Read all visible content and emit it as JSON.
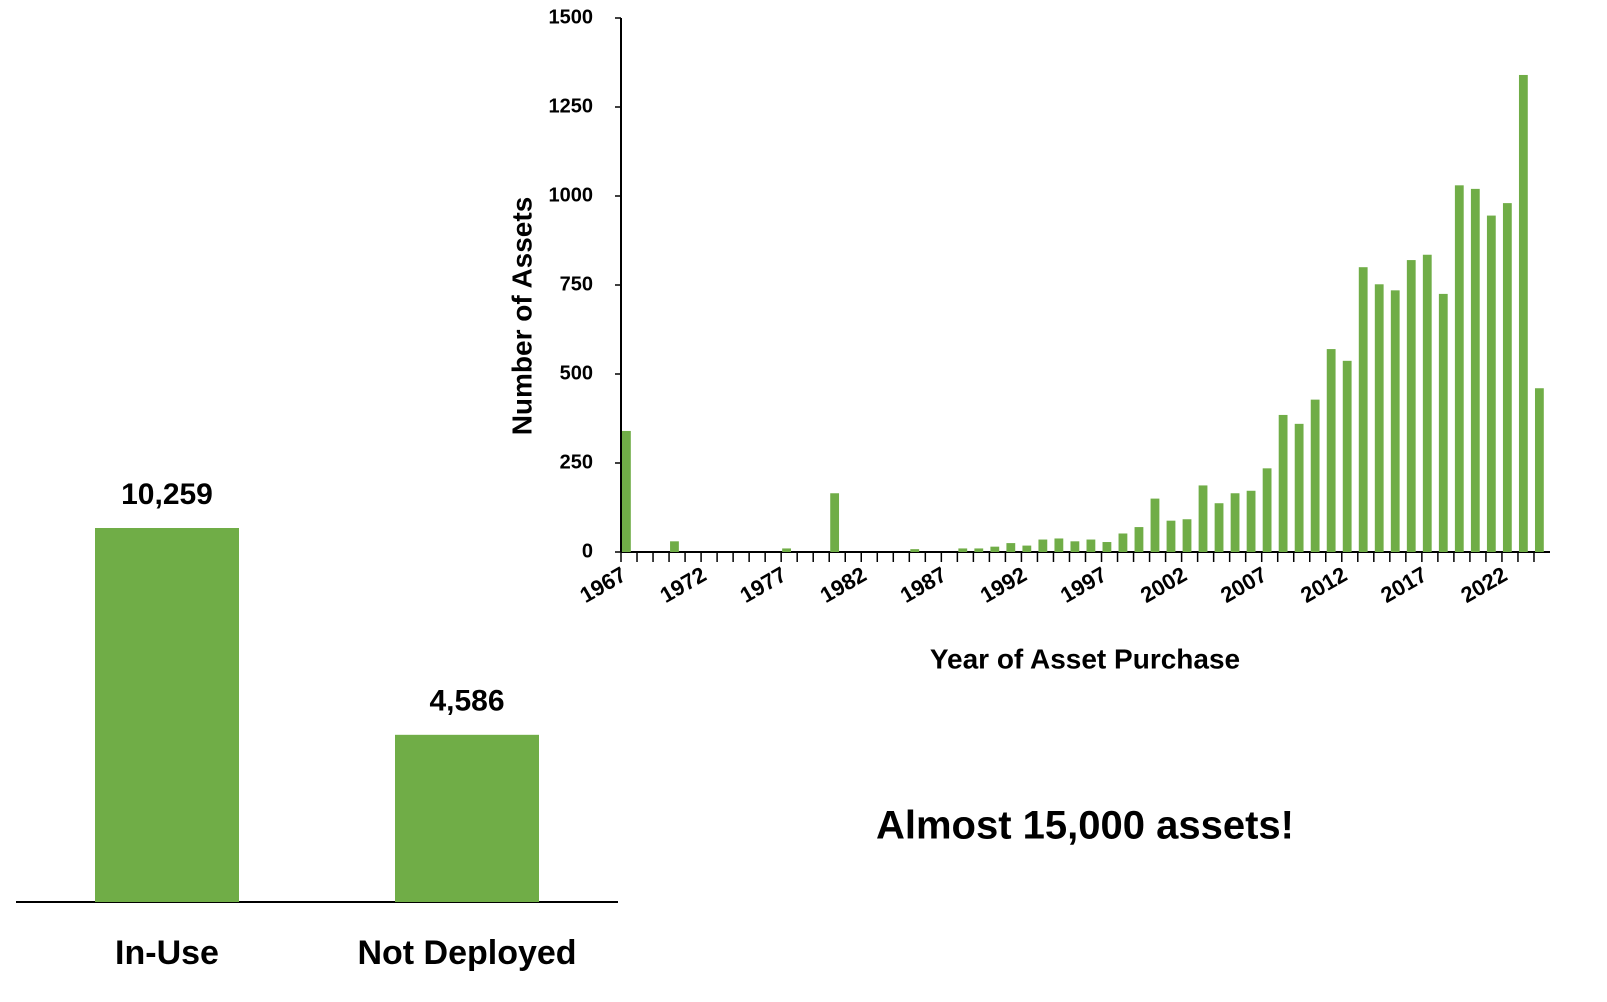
{
  "chart_data": [
    {
      "type": "bar",
      "categories": [
        "In-Use",
        "Not Deployed"
      ],
      "values": [
        10259,
        4586
      ],
      "value_labels": [
        "10,259",
        "4,586"
      ],
      "color": "#70ad47"
    },
    {
      "type": "bar",
      "x_label": "Year of Asset Purchase",
      "y_label": "Number of Assets",
      "annotation": "Almost 15,000 assets!",
      "color": "#70ad47",
      "categories": [
        "1967",
        null,
        null,
        null,
        null,
        "1972",
        null,
        null,
        null,
        null,
        "1977",
        null,
        null,
        null,
        null,
        "1982",
        null,
        null,
        null,
        null,
        "1987",
        null,
        null,
        null,
        null,
        "1992",
        null,
        null,
        null,
        null,
        "1997",
        null,
        null,
        null,
        null,
        "2002",
        null,
        null,
        null,
        null,
        "2007",
        null,
        null,
        null,
        null,
        "2012",
        null,
        null,
        null,
        null,
        "2017",
        null,
        null,
        null,
        null,
        "2022",
        null,
        null
      ],
      "values": [
        340,
        0,
        0,
        30,
        0,
        0,
        0,
        0,
        0,
        0,
        10,
        0,
        0,
        165,
        0,
        0,
        0,
        0,
        8,
        0,
        0,
        10,
        10,
        15,
        25,
        18,
        35,
        38,
        30,
        35,
        28,
        52,
        70,
        150,
        88,
        92,
        187,
        137,
        165,
        172,
        235,
        385,
        360,
        428,
        570,
        537,
        800,
        752,
        735,
        820,
        835,
        725,
        1030,
        1020,
        945,
        980,
        1340,
        460
      ],
      "ylim": [
        0,
        1500
      ],
      "yticks": [
        0,
        250,
        500,
        750,
        1000,
        1250,
        1500
      ]
    }
  ]
}
